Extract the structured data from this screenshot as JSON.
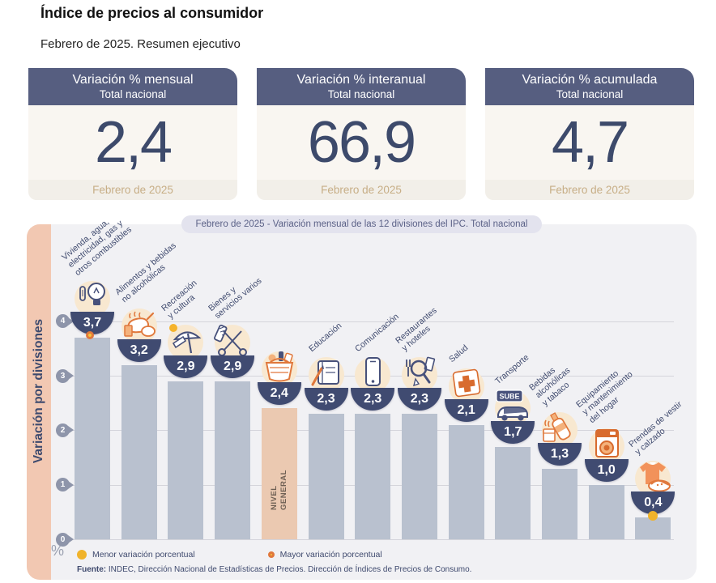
{
  "page": {
    "title": "Índice de precios al consumidor",
    "subtitle": "Febrero de 2025. Resumen ejecutivo"
  },
  "kpis": [
    {
      "title": "Variación % mensual",
      "subtitle": "Total nacional",
      "value": "2,4",
      "period": "Febrero de 2025"
    },
    {
      "title": "Variación % interanual",
      "subtitle": "Total nacional",
      "value": "66,9",
      "period": "Febrero de 2025"
    },
    {
      "title": "Variación % acumulada",
      "subtitle": "Total nacional",
      "value": "4,7",
      "period": "Febrero de 2025"
    }
  ],
  "chart": {
    "header_pill": "Febrero de 2025 - Variación mensual de las 12 divisiones del IPC. Total nacional",
    "y_axis_label": "Variación por divisiones",
    "y_unit": "%",
    "sube_label": "SUBE",
    "general_bar_label_lines": [
      "NIVEL",
      "GENERAL"
    ],
    "legend": [
      {
        "label": "Menor variación porcentual",
        "style": "solid-yellow"
      },
      {
        "label": "Mayor variación porcentual",
        "style": "orange-ring"
      }
    ],
    "source": {
      "prefix": "Fuente:",
      "text": " INDEC, Dirección Nacional de Estadísticas de Precios. Dirección de Índices de Precios de Consumo."
    }
  },
  "chart_data": {
    "type": "bar",
    "title": "Febrero de 2025 - Variación mensual de las 12 divisiones del IPC. Total nacional",
    "xlabel": "",
    "ylabel": "Variación por divisiones",
    "unit": "%",
    "ylim": [
      0,
      4
    ],
    "yticks": [
      0,
      1,
      2,
      3,
      4
    ],
    "grid": true,
    "categories": [
      "Vivienda, agua, electricidad, gas y otros combustibles",
      "Alimentos y bebidas no alcohólicas",
      "Recreación y cultura",
      "Bienes y servicios varios",
      "Nivel general",
      "Educación",
      "Comunicación",
      "Restaurantes y hoteles",
      "Salud",
      "Transporte",
      "Bebidas alcohólicas y tabaco",
      "Equipamiento y mantenimiento del hogar",
      "Prendas de vestir y calzado"
    ],
    "values": [
      3.7,
      3.2,
      2.9,
      2.9,
      2.4,
      2.3,
      2.3,
      2.3,
      2.1,
      1.7,
      1.3,
      1.0,
      0.4
    ],
    "value_labels": [
      "3,7",
      "3,2",
      "2,9",
      "2,9",
      "2,4",
      "2,3",
      "2,3",
      "2,3",
      "2,1",
      "1,7",
      "1,3",
      "1,0",
      "0,4"
    ],
    "bars": [
      {
        "id": "vivienda",
        "icon": "housing-utilities-icon",
        "value": 3.7,
        "display": "3,7",
        "label_lines": [
          "Vivienda, agua,",
          "electricidad, gas y",
          "otros combustibles"
        ],
        "highlight": false,
        "marker": "max"
      },
      {
        "id": "alimentos",
        "icon": "food-beverages-icon",
        "value": 3.2,
        "display": "3,2",
        "label_lines": [
          "Alimentos y bebidas",
          "no alcohólicas"
        ],
        "highlight": false,
        "marker": null
      },
      {
        "id": "recreacion",
        "icon": "recreation-culture-icon",
        "value": 2.9,
        "display": "2,9",
        "label_lines": [
          "Recreación",
          "y cultura"
        ],
        "highlight": false,
        "marker": null
      },
      {
        "id": "bienes-servicios",
        "icon": "misc-goods-services-icon",
        "value": 2.9,
        "display": "2,9",
        "label_lines": [
          "Bienes y",
          "servicios varios"
        ],
        "highlight": false,
        "marker": null
      },
      {
        "id": "nivel-general",
        "icon": "general-level-basket-icon",
        "value": 2.4,
        "display": "2,4",
        "label_lines": [],
        "highlight": true,
        "marker": null
      },
      {
        "id": "educacion",
        "icon": "education-icon",
        "value": 2.3,
        "display": "2,3",
        "label_lines": [
          "Educación"
        ],
        "highlight": false,
        "marker": null
      },
      {
        "id": "comunicacion",
        "icon": "communication-icon",
        "value": 2.3,
        "display": "2,3",
        "label_lines": [
          "Comunicación"
        ],
        "highlight": false,
        "marker": null
      },
      {
        "id": "restaurantes",
        "icon": "restaurants-hotels-icon",
        "value": 2.3,
        "display": "2,3",
        "label_lines": [
          "Restaurantes",
          "y hoteles"
        ],
        "highlight": false,
        "marker": null
      },
      {
        "id": "salud",
        "icon": "health-icon",
        "value": 2.1,
        "display": "2,1",
        "label_lines": [
          "Salud"
        ],
        "highlight": false,
        "marker": null
      },
      {
        "id": "transporte",
        "icon": "transport-icon",
        "value": 1.7,
        "display": "1,7",
        "label_lines": [
          "Transporte"
        ],
        "highlight": false,
        "marker": null
      },
      {
        "id": "bebidas-tabaco",
        "icon": "alcohol-tobacco-icon",
        "value": 1.3,
        "display": "1,3",
        "label_lines": [
          "Bebidas",
          "alcohólicas",
          "y tabaco"
        ],
        "highlight": false,
        "marker": null
      },
      {
        "id": "equipamiento",
        "icon": "home-equipment-icon",
        "value": 1.0,
        "display": "1,0",
        "label_lines": [
          "Equipamiento",
          "y mantenimiento",
          "del hogar"
        ],
        "highlight": false,
        "marker": null
      },
      {
        "id": "prendas",
        "icon": "clothing-footwear-icon",
        "value": 0.4,
        "display": "0,4",
        "label_lines": [
          "Prendas de vestir",
          "y calzado"
        ],
        "highlight": false,
        "marker": "min"
      }
    ],
    "colors": {
      "bar": "#b9c1cf",
      "general_bar": "#ebc9b1",
      "bowl": "#404b71",
      "accent_orange": "#e0783c",
      "accent_yellow": "#f0b32b",
      "kpi_header": "#565e80",
      "kpi_value": "#3d4a6b",
      "axis_strip": "#f2c8b2",
      "chart_bg": "#f1f1f4"
    }
  }
}
